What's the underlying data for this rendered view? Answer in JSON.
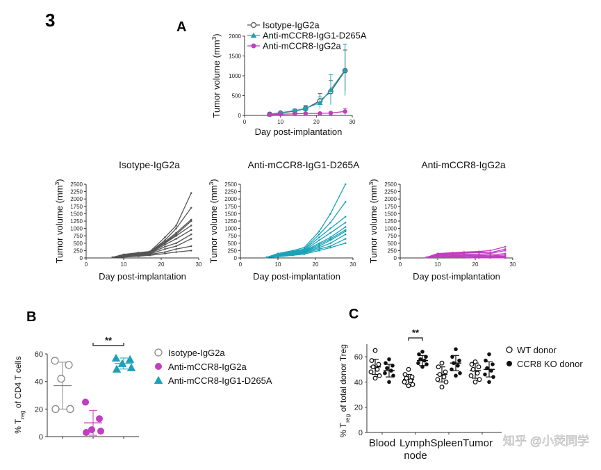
{
  "figure": {
    "number": "3",
    "watermark": "知乎 @小荧同学"
  },
  "chart_data": [
    {
      "id": "A_mean",
      "panel_label": "A",
      "type": "line",
      "xlabel": "Day post-implantation",
      "ylabel": "Tumor volume (mm³)",
      "xlim": [
        0,
        30
      ],
      "ylim": [
        0,
        2000
      ],
      "xticks": [
        0,
        10,
        20,
        30
      ],
      "yticks": [
        0,
        500,
        1000,
        1500,
        2000
      ],
      "legend_position": "top-left",
      "series": [
        {
          "name": "Isotype-IgG2a",
          "color": "#555555",
          "marker": "open-circle",
          "x": [
            7,
            10,
            14,
            17,
            21,
            24,
            28
          ],
          "y": [
            30,
            60,
            110,
            170,
            370,
            600,
            1130
          ],
          "err": [
            15,
            20,
            40,
            60,
            180,
            280,
            520
          ]
        },
        {
          "name": "Anti-mCCR8-IgG1-D265A",
          "color": "#1aa3b8",
          "marker": "triangle",
          "x": [
            7,
            10,
            14,
            17,
            21,
            24,
            28
          ],
          "y": [
            30,
            70,
            120,
            180,
            320,
            650,
            1150
          ],
          "err": [
            15,
            25,
            40,
            70,
            150,
            380,
            650
          ]
        },
        {
          "name": "Anti-mCCR8-IgG2a",
          "color": "#c03ec0",
          "marker": "filled-circle",
          "x": [
            7,
            10,
            14,
            17,
            21,
            24,
            28
          ],
          "y": [
            20,
            30,
            40,
            50,
            50,
            60,
            100
          ],
          "err": [
            8,
            10,
            12,
            18,
            20,
            25,
            80
          ]
        }
      ]
    },
    {
      "id": "A_iso",
      "type": "line",
      "title": "Isotype-IgG2a",
      "color": "#555555",
      "xlabel": "Day post-implantation",
      "ylabel": "Tumor volume (mm³)",
      "xlim": [
        0,
        30
      ],
      "ylim": [
        0,
        2500
      ],
      "xticks": [
        0,
        10,
        20,
        30
      ],
      "yticks": [
        0,
        250,
        500,
        750,
        1000,
        1250,
        1500,
        1750,
        2000,
        2250,
        2500
      ],
      "x": [
        7,
        10,
        14,
        17,
        21,
        24,
        28
      ],
      "series": [
        {
          "values": [
            20,
            120,
            180,
            220,
            700,
            1100,
            2200
          ]
        },
        {
          "values": [
            20,
            100,
            160,
            200,
            600,
            1000,
            1700
          ]
        },
        {
          "values": [
            20,
            90,
            150,
            200,
            550,
            850,
            1300
          ]
        },
        {
          "values": [
            20,
            80,
            140,
            190,
            520,
            800,
            1250
          ]
        },
        {
          "values": [
            20,
            80,
            130,
            180,
            500,
            750,
            1100
          ]
        },
        {
          "values": [
            20,
            70,
            120,
            170,
            450,
            650,
            950
          ]
        },
        {
          "values": [
            20,
            60,
            110,
            160,
            380,
            500,
            800
          ]
        },
        {
          "values": [
            20,
            50,
            100,
            140,
            300,
            400,
            650
          ]
        },
        {
          "values": [
            20,
            40,
            80,
            120,
            200,
            300,
            400
          ]
        },
        {
          "values": [
            20,
            30,
            60,
            90,
            150,
            200,
            250
          ]
        }
      ]
    },
    {
      "id": "A_d265a",
      "type": "line",
      "title": "Anti-mCCR8-IgG1-D265A",
      "color": "#1aa3b8",
      "xlabel": "Day post-implantation",
      "ylabel": "Tumor volume (mm³)",
      "xlim": [
        0,
        30
      ],
      "ylim": [
        0,
        2500
      ],
      "xticks": [
        0,
        10,
        20,
        30
      ],
      "yticks": [
        0,
        250,
        500,
        750,
        1000,
        1250,
        1500,
        1750,
        2000,
        2250,
        2500
      ],
      "x": [
        7,
        10,
        14,
        17,
        21,
        24,
        28
      ],
      "series": [
        {
          "values": [
            20,
            150,
            250,
            350,
            900,
            1500,
            2500
          ]
        },
        {
          "values": [
            20,
            120,
            220,
            300,
            800,
            1200,
            1900
          ]
        },
        {
          "values": [
            20,
            110,
            200,
            280,
            700,
            1000,
            1400
          ]
        },
        {
          "values": [
            20,
            100,
            180,
            250,
            600,
            850,
            1200
          ]
        },
        {
          "values": [
            20,
            90,
            170,
            240,
            500,
            700,
            1050
          ]
        },
        {
          "values": [
            20,
            80,
            160,
            220,
            450,
            650,
            950
          ]
        },
        {
          "values": [
            20,
            70,
            150,
            200,
            400,
            600,
            900
          ]
        },
        {
          "values": [
            20,
            60,
            130,
            180,
            350,
            500,
            800
          ]
        },
        {
          "values": [
            20,
            50,
            110,
            160,
            300,
            400,
            650
          ]
        },
        {
          "values": [
            20,
            40,
            90,
            130,
            250,
            350,
            500
          ]
        }
      ]
    },
    {
      "id": "A_igg2a",
      "type": "line",
      "title": "Anti-mCCR8-IgG2a",
      "color": "#c03ec0",
      "xlabel": "Day post-implantation",
      "ylabel": "Tumor volume (mm³)",
      "xlim": [
        0,
        30
      ],
      "ylim": [
        0,
        2500
      ],
      "xticks": [
        0,
        10,
        20,
        30
      ],
      "yticks": [
        0,
        250,
        500,
        750,
        1000,
        1250,
        1500,
        1750,
        2000,
        2250,
        2500
      ],
      "x": [
        7,
        10,
        14,
        17,
        21,
        24,
        28
      ],
      "series": [
        {
          "values": [
            20,
            150,
            180,
            200,
            220,
            250,
            380
          ]
        },
        {
          "values": [
            20,
            120,
            160,
            180,
            200,
            180,
            300
          ]
        },
        {
          "values": [
            20,
            100,
            140,
            160,
            180,
            150,
            250
          ]
        },
        {
          "values": [
            20,
            80,
            110,
            120,
            130,
            100,
            150
          ]
        },
        {
          "values": [
            20,
            60,
            80,
            100,
            90,
            70,
            100
          ]
        },
        {
          "values": [
            20,
            50,
            60,
            70,
            60,
            50,
            60
          ]
        },
        {
          "values": [
            20,
            40,
            50,
            40,
            30,
            30,
            40
          ]
        },
        {
          "values": [
            20,
            30,
            30,
            25,
            20,
            20,
            20
          ]
        },
        {
          "values": [
            20,
            20,
            20,
            15,
            10,
            10,
            10
          ]
        },
        {
          "values": [
            20,
            15,
            15,
            10,
            5,
            5,
            5
          ]
        }
      ]
    },
    {
      "id": "B",
      "panel_label": "B",
      "type": "scatter",
      "ylabel": "% Treg of CD4 T cells",
      "ylim": [
        0,
        60
      ],
      "yticks": [
        0,
        20,
        40,
        60
      ],
      "significance": "**",
      "legend_position": "right",
      "groups": [
        {
          "name": "Isotype-IgG2a",
          "color": "#888888",
          "marker": "open-circle",
          "values": [
            55,
            52,
            42,
            20,
            20
          ],
          "mean": 37,
          "sd": 17
        },
        {
          "name": "Anti-mCCR8-IgG2a",
          "color": "#c03ec0",
          "marker": "filled-circle",
          "values": [
            25,
            13,
            5,
            4,
            3
          ],
          "mean": 10,
          "sd": 9
        },
        {
          "name": "Anti-mCCR8-IgG1-D265A",
          "color": "#1aa3b8",
          "marker": "triangle",
          "values": [
            57,
            56,
            53,
            50,
            49
          ],
          "mean": 53,
          "sd": 4
        }
      ]
    },
    {
      "id": "C",
      "panel_label": "C",
      "type": "scatter",
      "ylabel": "% Treg of total donor Treg",
      "ylim": [
        0,
        70
      ],
      "yticks": [
        0,
        20,
        40,
        60
      ],
      "categories": [
        "Blood",
        "Lymph node",
        "Spleen",
        "Tumor"
      ],
      "category_labels": [
        "Blood",
        "LymphSpleenTumor",
        "node"
      ],
      "significance": "**",
      "legend_position": "top-right",
      "series": [
        {
          "name": "WT donor",
          "marker": "open-circle",
          "color": "#000000",
          "values": [
            [
              65,
              57,
              54,
              52,
              50,
              48,
              45,
              43
            ],
            [
              50,
              46,
              44,
              43,
              41,
              40,
              38,
              37
            ],
            [
              55,
              52,
              48,
              46,
              44,
              42,
              40,
              36
            ],
            [
              56,
              54,
              52,
              50,
              47,
              45,
              42,
              40
            ]
          ],
          "mean": [
            52,
            42,
            46,
            49
          ],
          "sd": [
            6,
            4,
            6,
            6
          ]
        },
        {
          "name": "CCR8 KO donor",
          "marker": "filled-circle",
          "color": "#000000",
          "values": [
            [
              58,
              55,
              53,
              51,
              49,
              47,
              45,
              40
            ],
            [
              64,
              62,
              60,
              58,
              57,
              55,
              54,
              52
            ],
            [
              66,
              60,
              57,
              55,
              53,
              50,
              47,
              45
            ],
            [
              62,
              57,
              54,
              51,
              49,
              46,
              44,
              40
            ]
          ],
          "mean": [
            49,
            57,
            55,
            50
          ],
          "sd": [
            5,
            4,
            6,
            6
          ]
        }
      ]
    }
  ]
}
